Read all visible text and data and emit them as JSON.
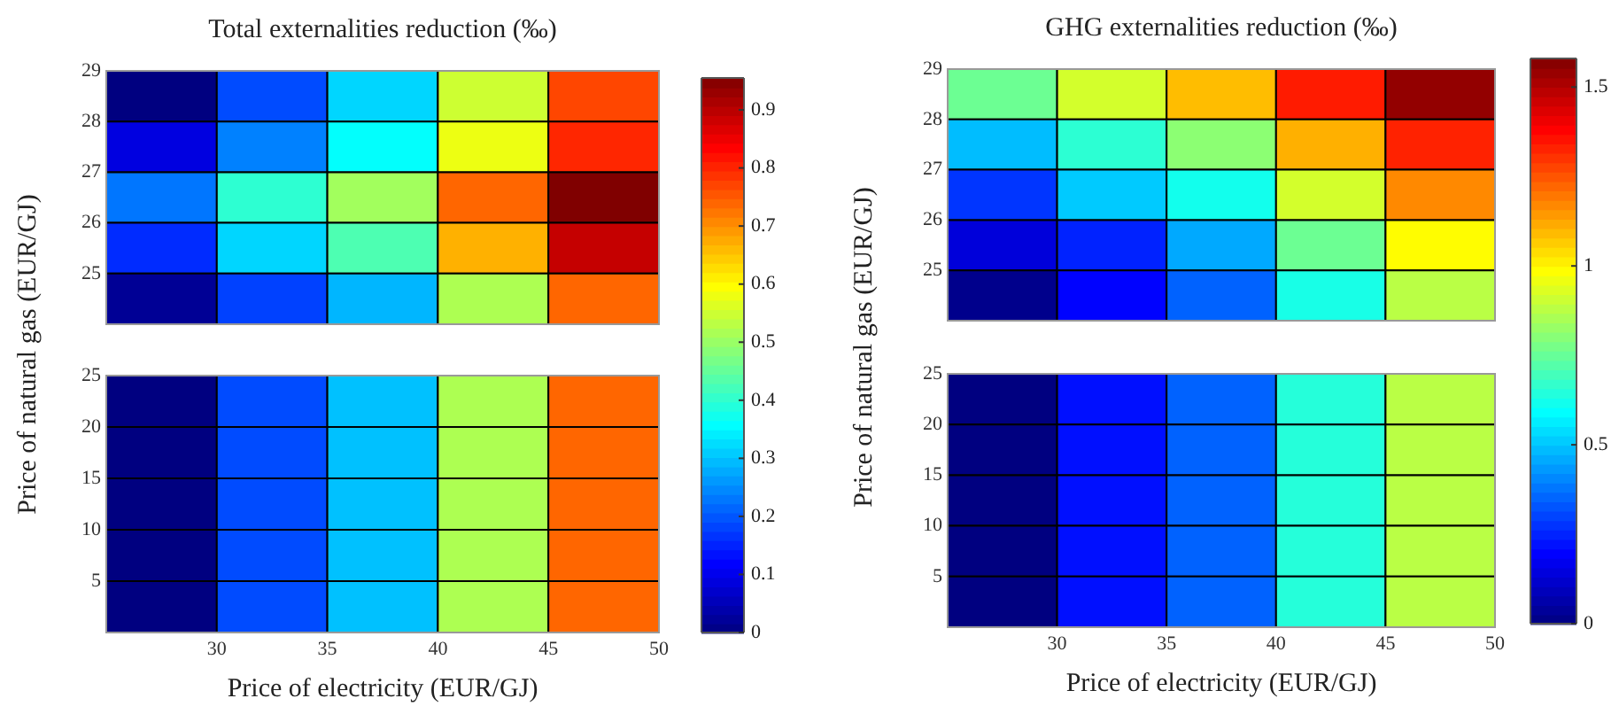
{
  "chart_data": [
    {
      "type": "heatmap",
      "title": "Total externalities reduction (‰)",
      "ylabel": "Price of natural gas (EUR/GJ)",
      "tick_labels": "y",
      "xlim": [
        25,
        50
      ],
      "ylim": [
        24,
        29
      ],
      "yticks": [
        25,
        26,
        27,
        28,
        29
      ],
      "clim": [
        0,
        0.955
      ],
      "cticks": [
        0.5,
        0.6,
        0.7,
        0.8,
        0.9
      ],
      "cells": [
        [
          0.0,
          0.19,
          0.32,
          0.55,
          0.77
        ],
        [
          0.09,
          0.24,
          0.36,
          0.58,
          0.8
        ],
        [
          0.23,
          0.4,
          0.51,
          0.74,
          0.955
        ],
        [
          0.16,
          0.32,
          0.43,
          0.67,
          0.89
        ],
        [
          0.02,
          0.18,
          0.29,
          0.52,
          0.74
        ]
      ]
    },
    {
      "type": "heatmap",
      "xlabel": "Price of electricity (EUR/GJ)",
      "xlim": [
        25,
        50
      ],
      "xticks": [
        30,
        35,
        40,
        45,
        50
      ],
      "ylim": [
        0,
        25
      ],
      "yticks": [
        5,
        10,
        15,
        20,
        25
      ],
      "clim": [
        0,
        0.955
      ],
      "cticks": [
        0,
        0.1,
        0.2,
        0.3,
        0.4
      ],
      "cells": [
        [
          0.0,
          0.19,
          0.3,
          0.52,
          0.74
        ],
        [
          0.0,
          0.19,
          0.3,
          0.52,
          0.74
        ],
        [
          0.0,
          0.19,
          0.3,
          0.52,
          0.74
        ],
        [
          0.0,
          0.19,
          0.3,
          0.52,
          0.74
        ],
        [
          0.0,
          0.19,
          0.3,
          0.52,
          0.74
        ]
      ]
    },
    {
      "type": "heatmap",
      "title": "GHG externalities reduction (‰)",
      "ylabel": "Price of natural gas (EUR/GJ)",
      "tick_labels": "y",
      "xlim": [
        25,
        50
      ],
      "ylim": [
        24,
        29
      ],
      "yticks": [
        25,
        26,
        27,
        28,
        29
      ],
      "clim": [
        0,
        1.58
      ],
      "cticks": [
        1,
        1.5
      ],
      "cells": [
        [
          0.76,
          0.92,
          1.09,
          1.34,
          1.55
        ],
        [
          0.49,
          0.66,
          0.81,
          1.11,
          1.33
        ],
        [
          0.28,
          0.51,
          0.62,
          0.92,
          1.17
        ],
        [
          0.14,
          0.25,
          0.46,
          0.76,
          0.99
        ],
        [
          0.02,
          0.2,
          0.35,
          0.63,
          0.88
        ]
      ]
    },
    {
      "type": "heatmap",
      "xlabel": "Price of electricity (EUR/GJ)",
      "xlim": [
        25,
        50
      ],
      "xticks": [
        30,
        35,
        40,
        45,
        50
      ],
      "ylim": [
        0,
        25
      ],
      "yticks": [
        5,
        10,
        15,
        20,
        25
      ],
      "clim": [
        0,
        1.58
      ],
      "cticks": [
        0,
        0.5
      ],
      "cells": [
        [
          0.0,
          0.22,
          0.35,
          0.65,
          0.88
        ],
        [
          0.0,
          0.22,
          0.35,
          0.65,
          0.88
        ],
        [
          0.0,
          0.22,
          0.35,
          0.65,
          0.88
        ],
        [
          0.0,
          0.22,
          0.35,
          0.65,
          0.88
        ],
        [
          0.0,
          0.22,
          0.35,
          0.65,
          0.88
        ]
      ]
    }
  ]
}
